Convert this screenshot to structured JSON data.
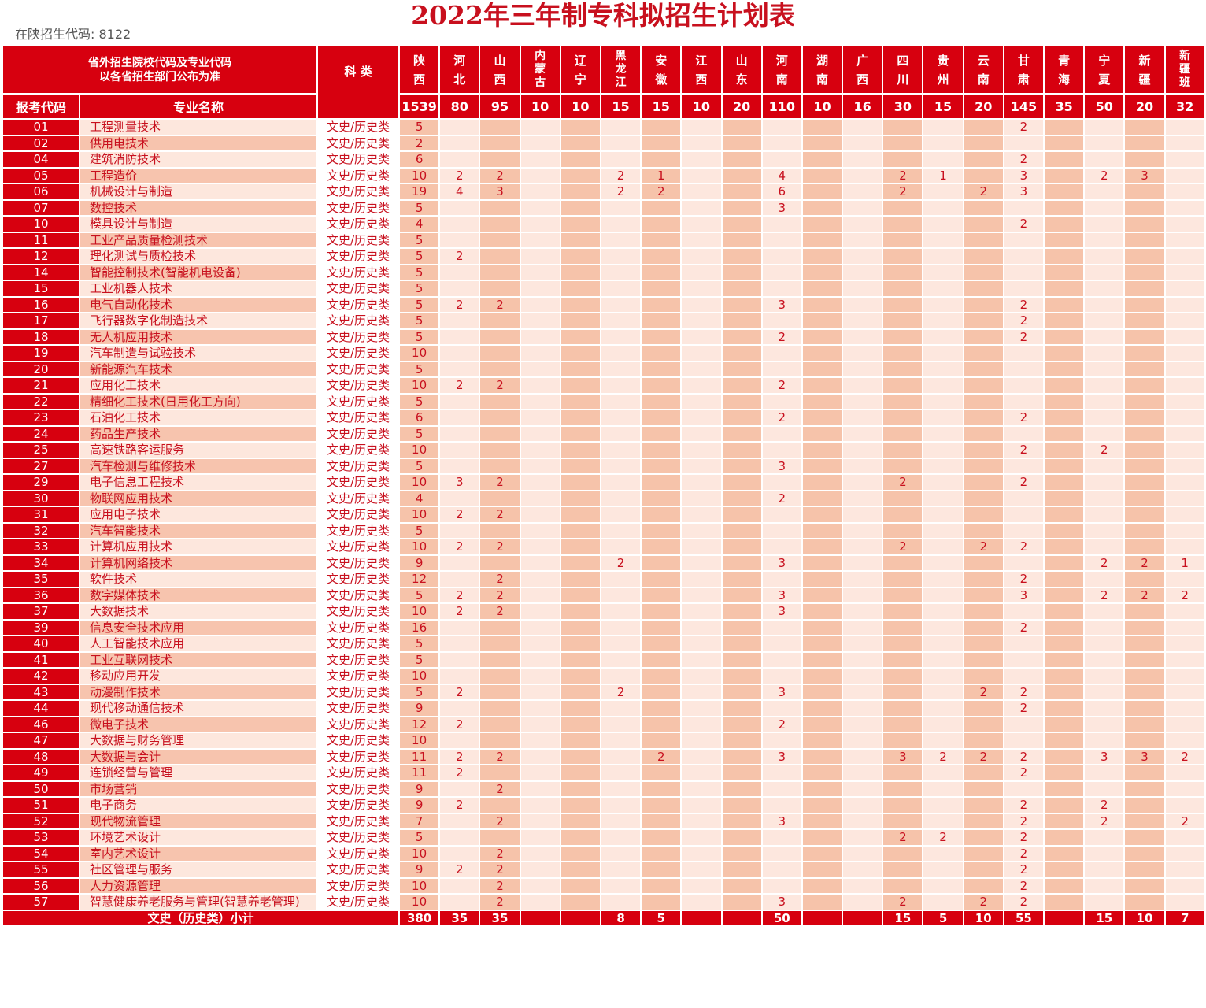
{
  "title": "2022年三年制专科拟招生计划表",
  "enroll_code": "在陕招生代码: 8122",
  "header": {
    "note_line1": "省外招生院校代码及专业代码",
    "note_line2": "以各省招生部门公布为准",
    "category": "科 类",
    "code": "报考代码",
    "major": "专业名称"
  },
  "provinces": [
    "陕西",
    "河北",
    "山西",
    "内蒙古",
    "辽宁",
    "黑龙江",
    "安徽",
    "江西",
    "山东",
    "河南",
    "湖南",
    "广西",
    "四川",
    "贵州",
    "云南",
    "甘肃",
    "青海",
    "宁夏",
    "新疆",
    "新疆班"
  ],
  "province_totals": [
    "1539",
    "80",
    "95",
    "10",
    "10",
    "15",
    "15",
    "10",
    "20",
    "110",
    "10",
    "16",
    "30",
    "15",
    "20",
    "145",
    "35",
    "50",
    "20",
    "32"
  ],
  "category_value": "文史/历史类",
  "rows": [
    {
      "code": "01",
      "name": "工程测量技术",
      "v": [
        "5",
        "",
        "",
        "",
        "",
        "",
        "",
        "",
        "",
        "",
        "",
        "",
        "",
        "",
        "",
        "2",
        "",
        "",
        "",
        ""
      ]
    },
    {
      "code": "02",
      "name": "供用电技术",
      "v": [
        "2",
        "",
        "",
        "",
        "",
        "",
        "",
        "",
        "",
        "",
        "",
        "",
        "",
        "",
        "",
        "",
        "",
        "",
        "",
        ""
      ]
    },
    {
      "code": "04",
      "name": "建筑消防技术",
      "v": [
        "6",
        "",
        "",
        "",
        "",
        "",
        "",
        "",
        "",
        "",
        "",
        "",
        "",
        "",
        "",
        "2",
        "",
        "",
        "",
        ""
      ]
    },
    {
      "code": "05",
      "name": "工程造价",
      "v": [
        "10",
        "2",
        "2",
        "",
        "",
        "2",
        "1",
        "",
        "",
        "4",
        "",
        "",
        "2",
        "1",
        "",
        "3",
        "",
        "2",
        "3",
        ""
      ]
    },
    {
      "code": "06",
      "name": "机械设计与制造",
      "v": [
        "19",
        "4",
        "3",
        "",
        "",
        "2",
        "2",
        "",
        "",
        "6",
        "",
        "",
        "2",
        "",
        "2",
        "3",
        "",
        "",
        "",
        ""
      ]
    },
    {
      "code": "07",
      "name": "数控技术",
      "v": [
        "5",
        "",
        "",
        "",
        "",
        "",
        "",
        "",
        "",
        "3",
        "",
        "",
        "",
        "",
        "",
        "",
        "",
        "",
        "",
        ""
      ]
    },
    {
      "code": "10",
      "name": "模具设计与制造",
      "v": [
        "4",
        "",
        "",
        "",
        "",
        "",
        "",
        "",
        "",
        "",
        "",
        "",
        "",
        "",
        "",
        "2",
        "",
        "",
        "",
        ""
      ]
    },
    {
      "code": "11",
      "name": "工业产品质量检测技术",
      "v": [
        "5",
        "",
        "",
        "",
        "",
        "",
        "",
        "",
        "",
        "",
        "",
        "",
        "",
        "",
        "",
        "",
        "",
        "",
        "",
        ""
      ]
    },
    {
      "code": "12",
      "name": "理化测试与质检技术",
      "v": [
        "5",
        "2",
        "",
        "",
        "",
        "",
        "",
        "",
        "",
        "",
        "",
        "",
        "",
        "",
        "",
        "",
        "",
        "",
        "",
        ""
      ]
    },
    {
      "code": "14",
      "name": "智能控制技术(智能机电设备)",
      "v": [
        "5",
        "",
        "",
        "",
        "",
        "",
        "",
        "",
        "",
        "",
        "",
        "",
        "",
        "",
        "",
        "",
        "",
        "",
        "",
        ""
      ]
    },
    {
      "code": "15",
      "name": "工业机器人技术",
      "v": [
        "5",
        "",
        "",
        "",
        "",
        "",
        "",
        "",
        "",
        "",
        "",
        "",
        "",
        "",
        "",
        "",
        "",
        "",
        "",
        ""
      ]
    },
    {
      "code": "16",
      "name": "电气自动化技术",
      "v": [
        "5",
        "2",
        "2",
        "",
        "",
        "",
        "",
        "",
        "",
        "3",
        "",
        "",
        "",
        "",
        "",
        "2",
        "",
        "",
        "",
        ""
      ]
    },
    {
      "code": "17",
      "name": "飞行器数字化制造技术",
      "v": [
        "5",
        "",
        "",
        "",
        "",
        "",
        "",
        "",
        "",
        "",
        "",
        "",
        "",
        "",
        "",
        "2",
        "",
        "",
        "",
        ""
      ]
    },
    {
      "code": "18",
      "name": "无人机应用技术",
      "v": [
        "5",
        "",
        "",
        "",
        "",
        "",
        "",
        "",
        "",
        "2",
        "",
        "",
        "",
        "",
        "",
        "2",
        "",
        "",
        "",
        ""
      ]
    },
    {
      "code": "19",
      "name": "汽车制造与试验技术",
      "v": [
        "10",
        "",
        "",
        "",
        "",
        "",
        "",
        "",
        "",
        "",
        "",
        "",
        "",
        "",
        "",
        "",
        "",
        "",
        "",
        ""
      ]
    },
    {
      "code": "20",
      "name": "新能源汽车技术",
      "v": [
        "5",
        "",
        "",
        "",
        "",
        "",
        "",
        "",
        "",
        "",
        "",
        "",
        "",
        "",
        "",
        "",
        "",
        "",
        "",
        ""
      ]
    },
    {
      "code": "21",
      "name": "应用化工技术",
      "v": [
        "10",
        "2",
        "2",
        "",
        "",
        "",
        "",
        "",
        "",
        "2",
        "",
        "",
        "",
        "",
        "",
        "",
        "",
        "",
        "",
        ""
      ]
    },
    {
      "code": "22",
      "name": "精细化工技术(日用化工方向)",
      "v": [
        "5",
        "",
        "",
        "",
        "",
        "",
        "",
        "",
        "",
        "",
        "",
        "",
        "",
        "",
        "",
        "",
        "",
        "",
        "",
        ""
      ]
    },
    {
      "code": "23",
      "name": "石油化工技术",
      "v": [
        "6",
        "",
        "",
        "",
        "",
        "",
        "",
        "",
        "",
        "2",
        "",
        "",
        "",
        "",
        "",
        "2",
        "",
        "",
        "",
        ""
      ]
    },
    {
      "code": "24",
      "name": "药品生产技术",
      "v": [
        "5",
        "",
        "",
        "",
        "",
        "",
        "",
        "",
        "",
        "",
        "",
        "",
        "",
        "",
        "",
        "",
        "",
        "",
        "",
        ""
      ]
    },
    {
      "code": "25",
      "name": "高速铁路客运服务",
      "v": [
        "10",
        "",
        "",
        "",
        "",
        "",
        "",
        "",
        "",
        "",
        "",
        "",
        "",
        "",
        "",
        "2",
        "",
        "2",
        "",
        ""
      ]
    },
    {
      "code": "27",
      "name": "汽车检测与维修技术",
      "v": [
        "5",
        "",
        "",
        "",
        "",
        "",
        "",
        "",
        "",
        "3",
        "",
        "",
        "",
        "",
        "",
        "",
        "",
        "",
        "",
        ""
      ]
    },
    {
      "code": "29",
      "name": "电子信息工程技术",
      "v": [
        "10",
        "3",
        "2",
        "",
        "",
        "",
        "",
        "",
        "",
        "",
        "",
        "",
        "2",
        "",
        "",
        "2",
        "",
        "",
        "",
        ""
      ]
    },
    {
      "code": "30",
      "name": "物联网应用技术",
      "v": [
        "4",
        "",
        "",
        "",
        "",
        "",
        "",
        "",
        "",
        "2",
        "",
        "",
        "",
        "",
        "",
        "",
        "",
        "",
        "",
        ""
      ]
    },
    {
      "code": "31",
      "name": "应用电子技术",
      "v": [
        "10",
        "2",
        "2",
        "",
        "",
        "",
        "",
        "",
        "",
        "",
        "",
        "",
        "",
        "",
        "",
        "",
        "",
        "",
        "",
        ""
      ]
    },
    {
      "code": "32",
      "name": "汽车智能技术",
      "v": [
        "5",
        "",
        "",
        "",
        "",
        "",
        "",
        "",
        "",
        "",
        "",
        "",
        "",
        "",
        "",
        "",
        "",
        "",
        "",
        ""
      ]
    },
    {
      "code": "33",
      "name": "计算机应用技术",
      "v": [
        "10",
        "2",
        "2",
        "",
        "",
        "",
        "",
        "",
        "",
        "",
        "",
        "",
        "2",
        "",
        "2",
        "2",
        "",
        "",
        "",
        ""
      ]
    },
    {
      "code": "34",
      "name": "计算机网络技术",
      "v": [
        "9",
        "",
        "",
        "",
        "",
        "2",
        "",
        "",
        "",
        "3",
        "",
        "",
        "",
        "",
        "",
        "",
        "",
        "2",
        "2",
        "1"
      ]
    },
    {
      "code": "35",
      "name": "软件技术",
      "v": [
        "12",
        "",
        "2",
        "",
        "",
        "",
        "",
        "",
        "",
        "",
        "",
        "",
        "",
        "",
        "",
        "2",
        "",
        "",
        "",
        ""
      ]
    },
    {
      "code": "36",
      "name": "数字媒体技术",
      "v": [
        "5",
        "2",
        "2",
        "",
        "",
        "",
        "",
        "",
        "",
        "3",
        "",
        "",
        "",
        "",
        "",
        "3",
        "",
        "2",
        "2",
        "2"
      ]
    },
    {
      "code": "37",
      "name": "大数据技术",
      "v": [
        "10",
        "2",
        "2",
        "",
        "",
        "",
        "",
        "",
        "",
        "3",
        "",
        "",
        "",
        "",
        "",
        "",
        "",
        "",
        "",
        ""
      ]
    },
    {
      "code": "39",
      "name": "信息安全技术应用",
      "v": [
        "16",
        "",
        "",
        "",
        "",
        "",
        "",
        "",
        "",
        "",
        "",
        "",
        "",
        "",
        "",
        "2",
        "",
        "",
        "",
        ""
      ]
    },
    {
      "code": "40",
      "name": "人工智能技术应用",
      "v": [
        "5",
        "",
        "",
        "",
        "",
        "",
        "",
        "",
        "",
        "",
        "",
        "",
        "",
        "",
        "",
        "",
        "",
        "",
        "",
        ""
      ]
    },
    {
      "code": "41",
      "name": "工业互联网技术",
      "v": [
        "5",
        "",
        "",
        "",
        "",
        "",
        "",
        "",
        "",
        "",
        "",
        "",
        "",
        "",
        "",
        "",
        "",
        "",
        "",
        ""
      ]
    },
    {
      "code": "42",
      "name": "移动应用开发",
      "v": [
        "10",
        "",
        "",
        "",
        "",
        "",
        "",
        "",
        "",
        "",
        "",
        "",
        "",
        "",
        "",
        "",
        "",
        "",
        "",
        ""
      ]
    },
    {
      "code": "43",
      "name": "动漫制作技术",
      "v": [
        "5",
        "2",
        "",
        "",
        "",
        "2",
        "",
        "",
        "",
        "3",
        "",
        "",
        "",
        "",
        "2",
        "2",
        "",
        "",
        "",
        ""
      ]
    },
    {
      "code": "44",
      "name": "现代移动通信技术",
      "v": [
        "9",
        "",
        "",
        "",
        "",
        "",
        "",
        "",
        "",
        "",
        "",
        "",
        "",
        "",
        "",
        "2",
        "",
        "",
        "",
        ""
      ]
    },
    {
      "code": "46",
      "name": "微电子技术",
      "v": [
        "12",
        "2",
        "",
        "",
        "",
        "",
        "",
        "",
        "",
        "2",
        "",
        "",
        "",
        "",
        "",
        "",
        "",
        "",
        "",
        ""
      ]
    },
    {
      "code": "47",
      "name": "大数据与财务管理",
      "v": [
        "10",
        "",
        "",
        "",
        "",
        "",
        "",
        "",
        "",
        "",
        "",
        "",
        "",
        "",
        "",
        "",
        "",
        "",
        "",
        ""
      ]
    },
    {
      "code": "48",
      "name": "大数据与会计",
      "v": [
        "11",
        "2",
        "2",
        "",
        "",
        "",
        "2",
        "",
        "",
        "3",
        "",
        "",
        "3",
        "2",
        "2",
        "2",
        "",
        "3",
        "3",
        "2"
      ]
    },
    {
      "code": "49",
      "name": "连锁经营与管理",
      "v": [
        "11",
        "2",
        "",
        "",
        "",
        "",
        "",
        "",
        "",
        "",
        "",
        "",
        "",
        "",
        "",
        "2",
        "",
        "",
        "",
        ""
      ]
    },
    {
      "code": "50",
      "name": "市场营销",
      "v": [
        "9",
        "",
        "2",
        "",
        "",
        "",
        "",
        "",
        "",
        "",
        "",
        "",
        "",
        "",
        "",
        "",
        "",
        "",
        "",
        ""
      ]
    },
    {
      "code": "51",
      "name": "电子商务",
      "v": [
        "9",
        "2",
        "",
        "",
        "",
        "",
        "",
        "",
        "",
        "",
        "",
        "",
        "",
        "",
        "",
        "2",
        "",
        "2",
        "",
        ""
      ]
    },
    {
      "code": "52",
      "name": "现代物流管理",
      "v": [
        "7",
        "",
        "2",
        "",
        "",
        "",
        "",
        "",
        "",
        "3",
        "",
        "",
        "",
        "",
        "",
        "2",
        "",
        "2",
        "",
        "2"
      ]
    },
    {
      "code": "53",
      "name": "环境艺术设计",
      "v": [
        "5",
        "",
        "",
        "",
        "",
        "",
        "",
        "",
        "",
        "",
        "",
        "",
        "2",
        "2",
        "",
        "2",
        "",
        "",
        "",
        ""
      ]
    },
    {
      "code": "54",
      "name": "室内艺术设计",
      "v": [
        "10",
        "",
        "2",
        "",
        "",
        "",
        "",
        "",
        "",
        "",
        "",
        "",
        "",
        "",
        "",
        "2",
        "",
        "",
        "",
        ""
      ]
    },
    {
      "code": "55",
      "name": "社区管理与服务",
      "v": [
        "9",
        "2",
        "2",
        "",
        "",
        "",
        "",
        "",
        "",
        "",
        "",
        "",
        "",
        "",
        "",
        "2",
        "",
        "",
        "",
        ""
      ]
    },
    {
      "code": "56",
      "name": "人力资源管理",
      "v": [
        "10",
        "",
        "2",
        "",
        "",
        "",
        "",
        "",
        "",
        "",
        "",
        "",
        "",
        "",
        "",
        "2",
        "",
        "",
        "",
        ""
      ]
    },
    {
      "code": "57",
      "name": "智慧健康养老服务与管理(智慧养老管理)",
      "v": [
        "10",
        "",
        "2",
        "",
        "",
        "",
        "",
        "",
        "",
        "3",
        "",
        "",
        "2",
        "",
        "2",
        "2",
        "",
        "",
        "",
        ""
      ]
    }
  ],
  "subtotal": {
    "label": "文史（历史类）小计",
    "values": [
      "380",
      "35",
      "35",
      "",
      "",
      "8",
      "5",
      "",
      "",
      "50",
      "",
      "",
      "15",
      "5",
      "10",
      "55",
      "",
      "15",
      "10",
      "7"
    ]
  },
  "colors": {
    "header_red": "#d7000f",
    "title_red": "#c8101e",
    "cell_dark": "#f6c3aa",
    "cell_light": "#fde7de"
  }
}
